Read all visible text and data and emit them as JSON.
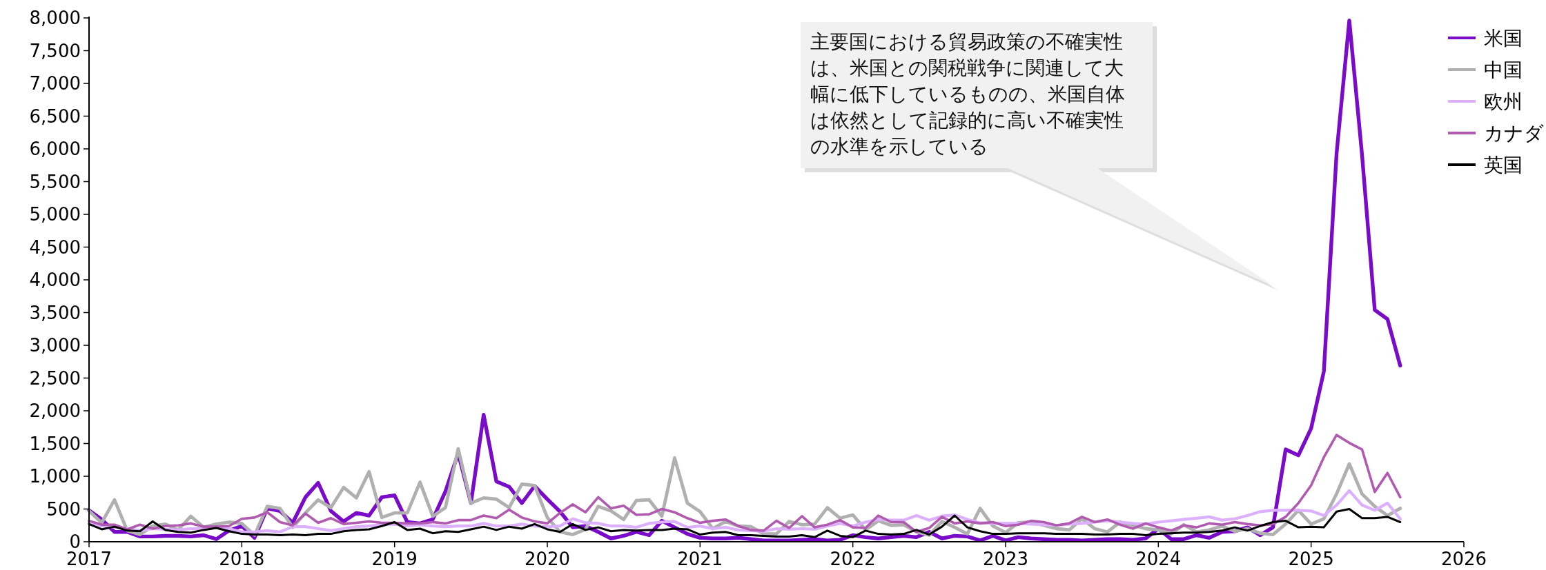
{
  "chart_data": {
    "type": "line",
    "x": [
      "2017-01",
      "2017-02",
      "2017-03",
      "2017-04",
      "2017-05",
      "2017-06",
      "2017-07",
      "2017-08",
      "2017-09",
      "2017-10",
      "2017-11",
      "2017-12",
      "2018-01",
      "2018-02",
      "2018-03",
      "2018-04",
      "2018-05",
      "2018-06",
      "2018-07",
      "2018-08",
      "2018-09",
      "2018-10",
      "2018-11",
      "2018-12",
      "2019-01",
      "2019-02",
      "2019-03",
      "2019-04",
      "2019-05",
      "2019-06",
      "2019-07",
      "2019-08",
      "2019-09",
      "2019-10",
      "2019-11",
      "2019-12",
      "2020-01",
      "2020-02",
      "2020-03",
      "2020-04",
      "2020-05",
      "2020-06",
      "2020-07",
      "2020-08",
      "2020-09",
      "2020-10",
      "2020-11",
      "2020-12",
      "2021-01",
      "2021-02",
      "2021-03",
      "2021-04",
      "2021-05",
      "2021-06",
      "2021-07",
      "2021-08",
      "2021-09",
      "2021-10",
      "2021-11",
      "2021-12",
      "2022-01",
      "2022-02",
      "2022-03",
      "2022-04",
      "2022-05",
      "2022-06",
      "2022-07",
      "2022-08",
      "2022-09",
      "2022-10",
      "2022-11",
      "2022-12",
      "2023-01",
      "2023-02",
      "2023-03",
      "2023-04",
      "2023-05",
      "2023-06",
      "2023-07",
      "2023-08",
      "2023-09",
      "2023-10",
      "2023-11",
      "2023-12",
      "2024-01",
      "2024-02",
      "2024-03",
      "2024-04",
      "2024-05",
      "2024-06",
      "2024-07",
      "2024-08",
      "2024-09",
      "2024-10",
      "2024-11",
      "2024-12",
      "2025-01",
      "2025-02",
      "2025-03",
      "2025-04",
      "2025-05",
      "2025-06",
      "2025-07",
      "2025-08"
    ],
    "xlim": [
      "2017-01",
      "2026-01"
    ],
    "xticks": [
      "2017",
      "2018",
      "2019",
      "2020",
      "2021",
      "2022",
      "2023",
      "2024",
      "2025",
      "2026"
    ],
    "ylim": [
      0,
      8000
    ],
    "yticks": [
      {
        "value": 0,
        "label": "0"
      },
      {
        "value": 500,
        "label": "500"
      },
      {
        "value": 1000,
        "label": "1,000"
      },
      {
        "value": 1500,
        "label": "1,500"
      },
      {
        "value": 2000,
        "label": "2,000"
      },
      {
        "value": 2500,
        "label": "2,500"
      },
      {
        "value": 3000,
        "label": "3,000"
      },
      {
        "value": 3500,
        "label": "3,500"
      },
      {
        "value": 4000,
        "label": "4,000"
      },
      {
        "value": 4500,
        "label": "4,500"
      },
      {
        "value": 5000,
        "label": "5,000"
      },
      {
        "value": 5500,
        "label": "5,500"
      },
      {
        "value": 6000,
        "label": "6,000"
      },
      {
        "value": 6500,
        "label": "6,500"
      },
      {
        "value": 7000,
        "label": "7,000"
      },
      {
        "value": 7500,
        "label": "7,500"
      },
      {
        "value": 8000,
        "label": "8,000"
      }
    ],
    "legend": "top right",
    "series": [
      {
        "name": "米国",
        "color": "#7a0bc8",
        "values": [
          480,
          340,
          150,
          150,
          80,
          80,
          90,
          90,
          80,
          100,
          40,
          170,
          240,
          60,
          510,
          470,
          290,
          680,
          900,
          470,
          310,
          440,
          400,
          680,
          710,
          300,
          280,
          340,
          770,
          1350,
          590,
          1940,
          920,
          840,
          590,
          850,
          650,
          460,
          220,
          240,
          150,
          50,
          90,
          150,
          100,
          320,
          220,
          120,
          60,
          50,
          50,
          60,
          40,
          20,
          20,
          20,
          30,
          40,
          20,
          30,
          100,
          70,
          50,
          70,
          90,
          70,
          150,
          50,
          90,
          80,
          20,
          90,
          20,
          70,
          50,
          40,
          30,
          30,
          20,
          30,
          40,
          40,
          30,
          50,
          200,
          40,
          40,
          100,
          60,
          150,
          160,
          220,
          100,
          220,
          1410,
          1320,
          1730,
          2600,
          5930,
          7960,
          5910,
          3540,
          3400,
          2690
        ]
      },
      {
        "name": "中国",
        "color": "#b0b0b0",
        "values": [
          470,
          290,
          640,
          170,
          110,
          240,
          270,
          180,
          390,
          220,
          270,
          300,
          280,
          100,
          540,
          510,
          220,
          440,
          640,
          520,
          830,
          670,
          1070,
          370,
          440,
          440,
          910,
          390,
          520,
          1420,
          590,
          670,
          650,
          520,
          880,
          860,
          370,
          150,
          110,
          190,
          540,
          470,
          340,
          630,
          640,
          390,
          1280,
          590,
          460,
          200,
          310,
          240,
          230,
          120,
          120,
          310,
          260,
          270,
          520,
          360,
          410,
          180,
          320,
          250,
          260,
          150,
          100,
          310,
          220,
          120,
          510,
          240,
          140,
          290,
          300,
          250,
          200,
          180,
          350,
          200,
          150,
          300,
          250,
          200,
          180,
          120,
          260,
          150,
          180,
          240,
          160,
          200,
          130,
          110,
          270,
          480,
          270,
          350,
          730,
          1190,
          730,
          540,
          400,
          510
        ]
      },
      {
        "name": "欧州",
        "color": "#dcb0ff",
        "values": [
          290,
          240,
          220,
          200,
          170,
          200,
          190,
          180,
          200,
          200,
          220,
          200,
          150,
          150,
          170,
          150,
          230,
          230,
          200,
          170,
          200,
          230,
          240,
          260,
          270,
          240,
          260,
          240,
          230,
          240,
          240,
          280,
          240,
          240,
          270,
          240,
          230,
          240,
          350,
          290,
          280,
          240,
          240,
          220,
          280,
          300,
          310,
          220,
          240,
          200,
          220,
          180,
          170,
          160,
          200,
          190,
          200,
          190,
          240,
          280,
          240,
          300,
          340,
          330,
          330,
          400,
          330,
          390,
          410,
          340,
          290,
          280,
          280,
          280,
          270,
          260,
          250,
          270,
          280,
          300,
          320,
          300,
          280,
          270,
          300,
          320,
          340,
          360,
          380,
          330,
          350,
          400,
          460,
          480,
          480,
          480,
          470,
          400,
          560,
          780,
          560,
          480,
          590,
          350
        ]
      },
      {
        "name": "カナダ",
        "color": "#b05ab0",
        "values": [
          320,
          260,
          260,
          190,
          260,
          200,
          240,
          250,
          280,
          230,
          230,
          240,
          350,
          370,
          450,
          300,
          250,
          430,
          290,
          360,
          270,
          290,
          310,
          290,
          290,
          280,
          280,
          300,
          280,
          330,
          330,
          400,
          360,
          490,
          370,
          310,
          280,
          440,
          570,
          450,
          680,
          510,
          550,
          410,
          420,
          500,
          450,
          360,
          290,
          320,
          340,
          240,
          180,
          170,
          320,
          210,
          390,
          220,
          260,
          330,
          220,
          210,
          400,
          300,
          300,
          150,
          210,
          380,
          280,
          310,
          280,
          300,
          240,
          260,
          320,
          300,
          250,
          280,
          380,
          300,
          340,
          260,
          200,
          280,
          220,
          170,
          250,
          220,
          280,
          260,
          300,
          270,
          250,
          270,
          380,
          590,
          860,
          1290,
          1630,
          1510,
          1410,
          760,
          1050,
          680
        ]
      },
      {
        "name": "英国",
        "color": "#000000",
        "values": [
          270,
          190,
          230,
          170,
          160,
          310,
          180,
          150,
          140,
          180,
          210,
          160,
          120,
          110,
          110,
          100,
          110,
          100,
          120,
          120,
          160,
          180,
          190,
          240,
          300,
          180,
          200,
          130,
          160,
          150,
          190,
          230,
          180,
          230,
          200,
          270,
          190,
          150,
          270,
          180,
          220,
          160,
          180,
          170,
          180,
          180,
          200,
          190,
          110,
          140,
          150,
          100,
          100,
          90,
          80,
          80,
          100,
          70,
          170,
          90,
          70,
          170,
          120,
          110,
          120,
          180,
          110,
          230,
          400,
          220,
          160,
          120,
          120,
          130,
          130,
          130,
          120,
          120,
          120,
          110,
          110,
          120,
          120,
          100,
          120,
          130,
          140,
          140,
          150,
          170,
          220,
          170,
          240,
          300,
          320,
          220,
          230,
          220,
          460,
          500,
          360,
          360,
          380,
          300
        ]
      }
    ],
    "annotations": [
      "主要国における貿易政策の不確実性は、米国との関税戦争に関連して大幅に低下しているものの、米国自体は依然として記録的に高い不確実性の水準を示している"
    ]
  }
}
